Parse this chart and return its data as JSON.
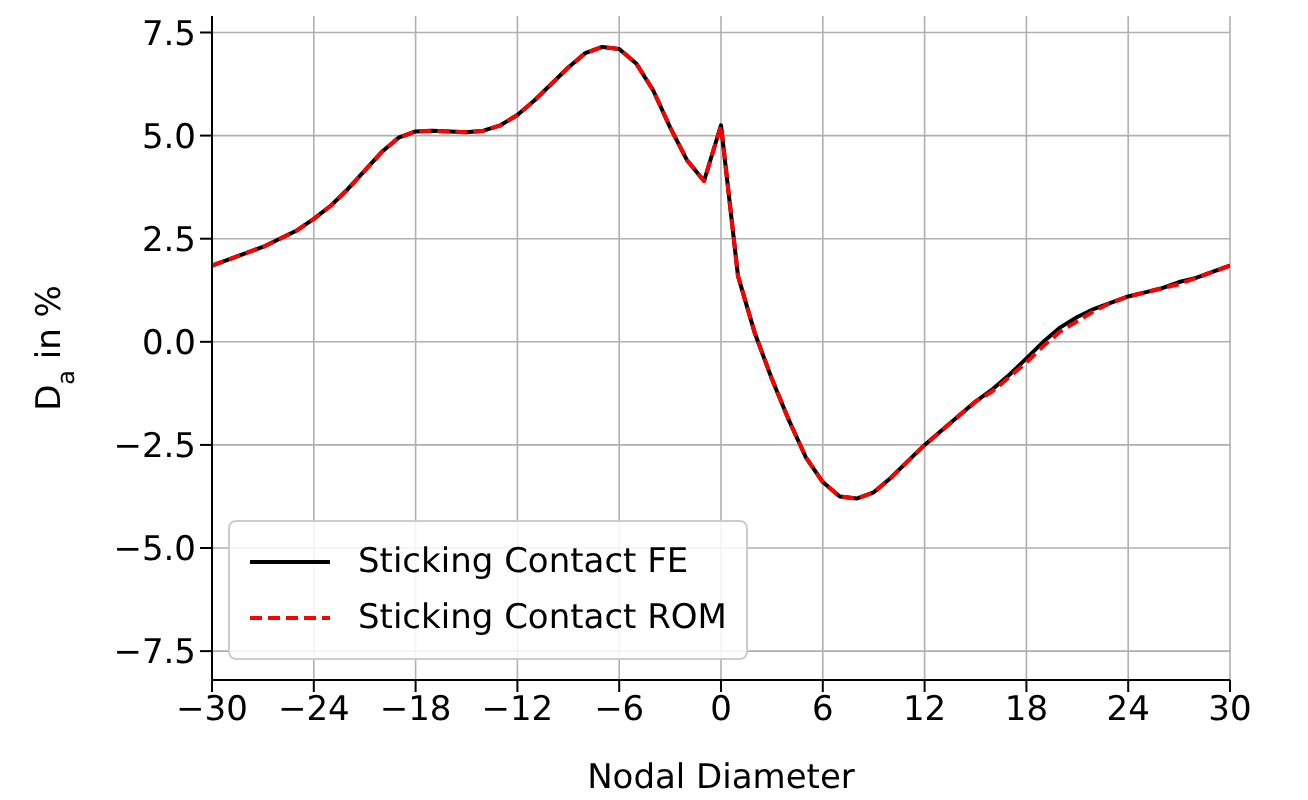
{
  "chart_data": {
    "type": "line",
    "xlabel": "Nodal Diameter",
    "ylabel": "D$_{a}$ in %",
    "x": [
      -30,
      -29,
      -28,
      -27,
      -26,
      -25,
      -24,
      -23,
      -22,
      -21,
      -20,
      -19,
      -18,
      -17,
      -16,
      -15,
      -14,
      -13,
      -12,
      -11,
      -10,
      -9,
      -8,
      -7,
      -6,
      -5,
      -4,
      -3,
      -2,
      -1,
      0,
      1,
      2,
      3,
      4,
      5,
      6,
      7,
      8,
      9,
      10,
      11,
      12,
      13,
      14,
      15,
      16,
      17,
      18,
      19,
      20,
      21,
      22,
      23,
      24,
      25,
      26,
      27,
      28,
      29,
      30
    ],
    "series": [
      {
        "name": "Sticking Contact FE",
        "color": "#000000",
        "line_style": "solid",
        "values": [
          1.85,
          2.0,
          2.15,
          2.3,
          2.5,
          2.7,
          2.98,
          3.3,
          3.7,
          4.15,
          4.6,
          4.95,
          5.1,
          5.12,
          5.1,
          5.08,
          5.12,
          5.25,
          5.5,
          5.85,
          6.25,
          6.65,
          7.0,
          7.15,
          7.1,
          6.75,
          6.1,
          5.2,
          4.4,
          3.9,
          5.25,
          1.6,
          0.2,
          -0.9,
          -1.9,
          -2.8,
          -3.4,
          -3.75,
          -3.8,
          -3.65,
          -3.3,
          -2.9,
          -2.5,
          -2.15,
          -1.8,
          -1.45,
          -1.15,
          -0.8,
          -0.4,
          0.0,
          0.35,
          0.6,
          0.8,
          0.95,
          1.1,
          1.2,
          1.3,
          1.45,
          1.55,
          1.7,
          1.85
        ]
      },
      {
        "name": "Sticking Contact ROM",
        "color": "#ff0000",
        "line_style": "dashed",
        "values": [
          1.85,
          2.0,
          2.15,
          2.3,
          2.5,
          2.7,
          2.98,
          3.3,
          3.7,
          4.15,
          4.6,
          4.95,
          5.1,
          5.12,
          5.1,
          5.08,
          5.12,
          5.25,
          5.5,
          5.85,
          6.25,
          6.65,
          7.0,
          7.15,
          7.1,
          6.75,
          6.1,
          5.2,
          4.4,
          3.9,
          5.25,
          1.6,
          0.2,
          -0.9,
          -1.9,
          -2.8,
          -3.4,
          -3.75,
          -3.8,
          -3.65,
          -3.3,
          -2.9,
          -2.5,
          -2.15,
          -1.8,
          -1.45,
          -1.2,
          -0.85,
          -0.5,
          -0.1,
          0.25,
          0.5,
          0.75,
          0.95,
          1.1,
          1.2,
          1.3,
          1.4,
          1.55,
          1.7,
          1.85
        ]
      }
    ],
    "xlim": [
      -30,
      30
    ],
    "xticks": [
      {
        "value": -30,
        "label": "−30"
      },
      {
        "value": -24,
        "label": "−24"
      },
      {
        "value": -18,
        "label": "−18"
      },
      {
        "value": -12,
        "label": "−12"
      },
      {
        "value": -6,
        "label": "−6"
      },
      0,
      6,
      12,
      18,
      24,
      30
    ],
    "ylim": [
      -8.2,
      7.9
    ],
    "yticks": [
      {
        "value": -7.5,
        "label": "−7.5"
      },
      {
        "value": -5,
        "label": "−5.0"
      },
      {
        "value": -2.5,
        "label": "−2.5"
      },
      {
        "value": 0,
        "label": "0.0"
      },
      {
        "value": 2.5,
        "label": "2.5"
      },
      {
        "value": 5,
        "label": "5.0"
      },
      {
        "value": 7.5,
        "label": "7.5"
      }
    ],
    "grid": true,
    "legend": "bottom left",
    "marker": "none"
  }
}
